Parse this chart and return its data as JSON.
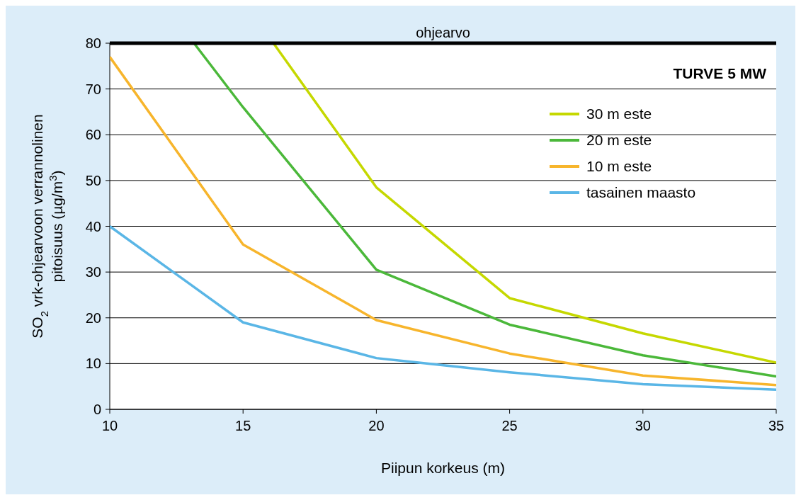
{
  "chart_data": {
    "type": "line",
    "title": "TURVE  5 MW",
    "xlabel": "Piipun korkeus (m)",
    "ylabel": "SO$_{2}$ vrk-ohjearvoon  verrannolinen pitoisuus (µg/m$^{3}$)",
    "xlim": [
      10,
      35
    ],
    "xticks": [
      10,
      15,
      20,
      25,
      30,
      35
    ],
    "ylim": [
      0,
      80
    ],
    "yticks": [
      0,
      10,
      20,
      30,
      40,
      50,
      60,
      70,
      80
    ],
    "grid": "y",
    "legend": "top right",
    "marker": "none",
    "line_style": "solid",
    "ref_lines": [
      {
        "axis": "y",
        "value": 80,
        "label": "ohjearvo",
        "color": "#000000"
      }
    ],
    "series": [
      {
        "name": "30 m este",
        "color": "#c5d800",
        "x": [
          16.14,
          20,
          25,
          30,
          35
        ],
        "values": [
          80,
          48.5,
          24.3,
          16.6,
          10.2
        ]
      },
      {
        "name": "20 m este",
        "color": "#4bb83a",
        "x": [
          13.16,
          15,
          20,
          25,
          30,
          35
        ],
        "values": [
          80,
          66,
          30.5,
          18.5,
          11.8,
          7.2
        ]
      },
      {
        "name": "10 m este",
        "color": "#f7b52c",
        "x": [
          10,
          15,
          20,
          25,
          30,
          35
        ],
        "values": [
          77,
          36,
          19.5,
          12.2,
          7.4,
          5.3
        ]
      },
      {
        "name": "tasainen maasto",
        "color": "#5ab6e6",
        "x": [
          10,
          15,
          20,
          25,
          30,
          35
        ],
        "values": [
          40,
          19,
          11.2,
          8.1,
          5.5,
          4.3
        ]
      }
    ]
  }
}
